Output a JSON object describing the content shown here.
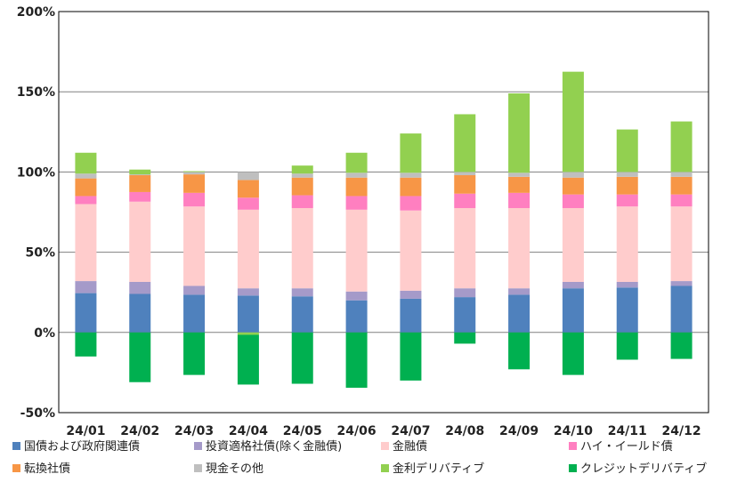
{
  "chart_data": {
    "type": "bar",
    "stacked": true,
    "categories": [
      "24/01",
      "24/02",
      "24/03",
      "24/04",
      "24/05",
      "24/06",
      "24/07",
      "24/08",
      "24/09",
      "24/10",
      "24/11",
      "24/12"
    ],
    "y_ticks": [
      "200%",
      "150%",
      "100%",
      "50%",
      "0%",
      "-50%"
    ],
    "ylim": [
      -50,
      200
    ],
    "grid": true,
    "legend_position": "bottom",
    "series": [
      {
        "name": "国債および政府関連債",
        "color": "#4f81bd",
        "values": [
          24.5,
          24,
          23.5,
          23,
          22.5,
          20,
          21,
          22,
          23.5,
          27.5,
          28,
          29
        ]
      },
      {
        "name": "投資適格社債(除く金融債)",
        "color": "#a59ac9",
        "values": [
          7.5,
          7.5,
          5.5,
          4.5,
          5,
          5.5,
          5,
          5.5,
          4,
          4,
          3.5,
          3
        ]
      },
      {
        "name": "金融債",
        "color": "#ffcccc",
        "values": [
          48,
          50,
          49.5,
          49,
          50,
          51,
          50,
          50,
          50,
          46,
          47,
          46.5
        ]
      },
      {
        "name": "ハイ・イールド債",
        "color": "#ff7fc0",
        "values": [
          5,
          6,
          8.5,
          7.5,
          8,
          8.5,
          9,
          9,
          9.5,
          8.5,
          7.5,
          7.5
        ]
      },
      {
        "name": "転換社債",
        "color": "#f79646",
        "values": [
          11,
          10.5,
          11.5,
          11,
          11,
          11.5,
          11.5,
          11.5,
          10,
          10.5,
          11,
          11
        ]
      },
      {
        "name": "現金その他",
        "color": "#bfbfbf",
        "values": [
          3,
          0.5,
          1.5,
          5,
          2.5,
          3,
          3,
          2,
          2.5,
          3.5,
          3,
          3
        ]
      },
      {
        "name": "金利デリバティブ",
        "color": "#92d050",
        "values": [
          13,
          3,
          0.5,
          -1.5,
          5,
          12.5,
          24.5,
          36,
          49.5,
          62.5,
          26.5,
          31.5
        ]
      },
      {
        "name": "クレジットデリバティブ",
        "color": "#00b050",
        "values": [
          -15,
          -31,
          -26.5,
          -31,
          -32,
          -34.5,
          -30,
          -7,
          -23,
          -26.5,
          -17,
          -16.5
        ]
      }
    ]
  }
}
